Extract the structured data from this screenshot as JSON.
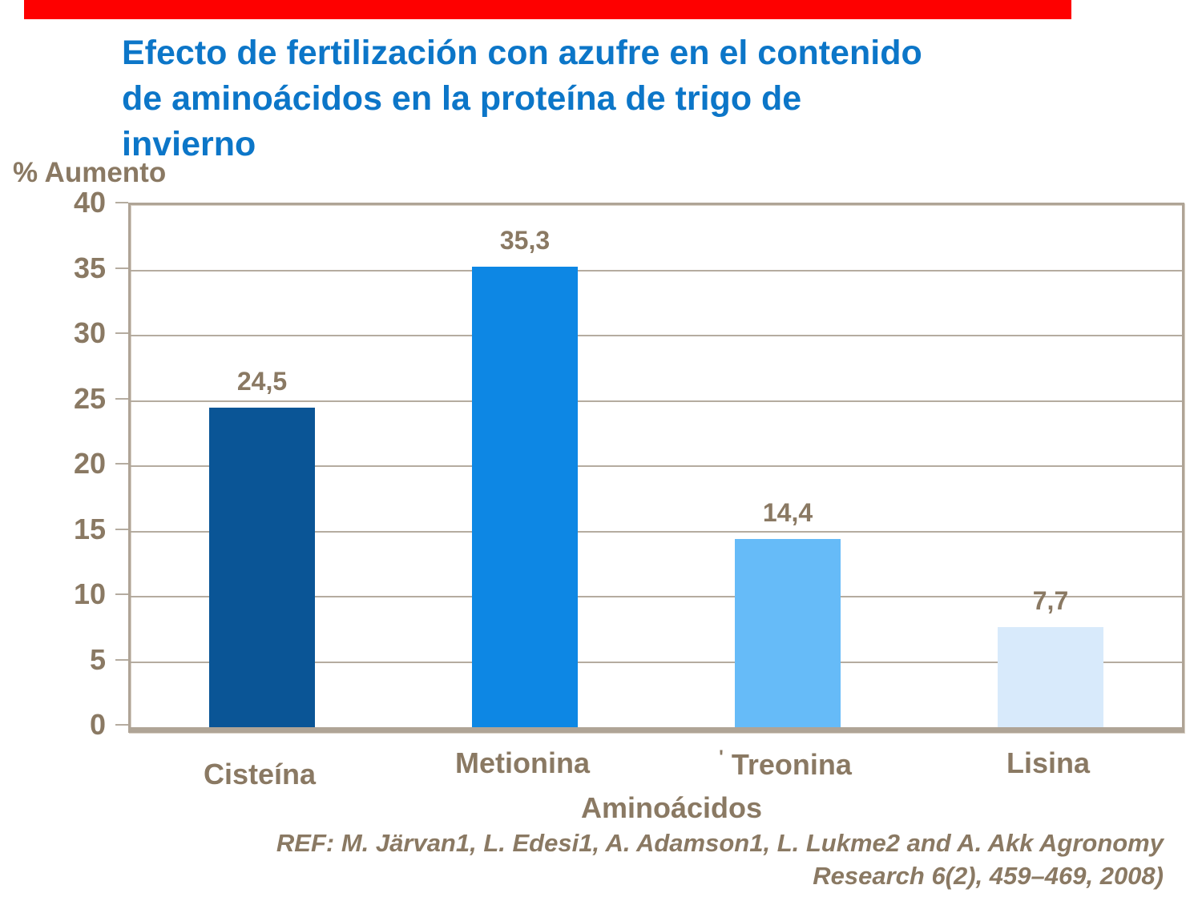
{
  "page": {
    "title": "Efecto de fertilización con azufre en el contenido\nde aminoácidos en la proteína de trigo de\ninvierno"
  },
  "chart_data": {
    "type": "bar",
    "title": "Efecto de fertilización con azufre en el contenido de aminoácidos en la proteína de trigo de invierno",
    "categories": [
      "Cisteína",
      "Metionina",
      "Treonina",
      "Lisina"
    ],
    "values": [
      24.5,
      35.3,
      14.4,
      7.7
    ],
    "value_labels": [
      "24,5",
      "35,3",
      "14,4",
      "7,7"
    ],
    "category_prefix_marks": [
      "",
      "",
      "'",
      ""
    ],
    "category_label_y_offsets": [
      14,
      0,
      0,
      0
    ],
    "bar_colors": [
      "#0A5596",
      "#0D87E4",
      "#66BBF8",
      "#D8EAFB"
    ],
    "xlabel": "Aminoácidos",
    "ylabel": "% Aumento",
    "ylim": [
      0,
      40
    ],
    "yticks": [
      0,
      5,
      10,
      15,
      20,
      25,
      30,
      35,
      40
    ],
    "grid": true,
    "legend": false
  },
  "footer": {
    "reference": "REF: M. Järvan1, L. Edesi1, A. Adamson1, L. Lukme2 and A. Akk Agronomy\nResearch 6(2), 459–469, 2008)"
  },
  "colors": {
    "accent_bar": "#FE0000",
    "title_text": "#0C76C8",
    "axis_text": "#8A7963",
    "grid_line": "#B5ACA0",
    "frame_border": "#AFA496"
  }
}
